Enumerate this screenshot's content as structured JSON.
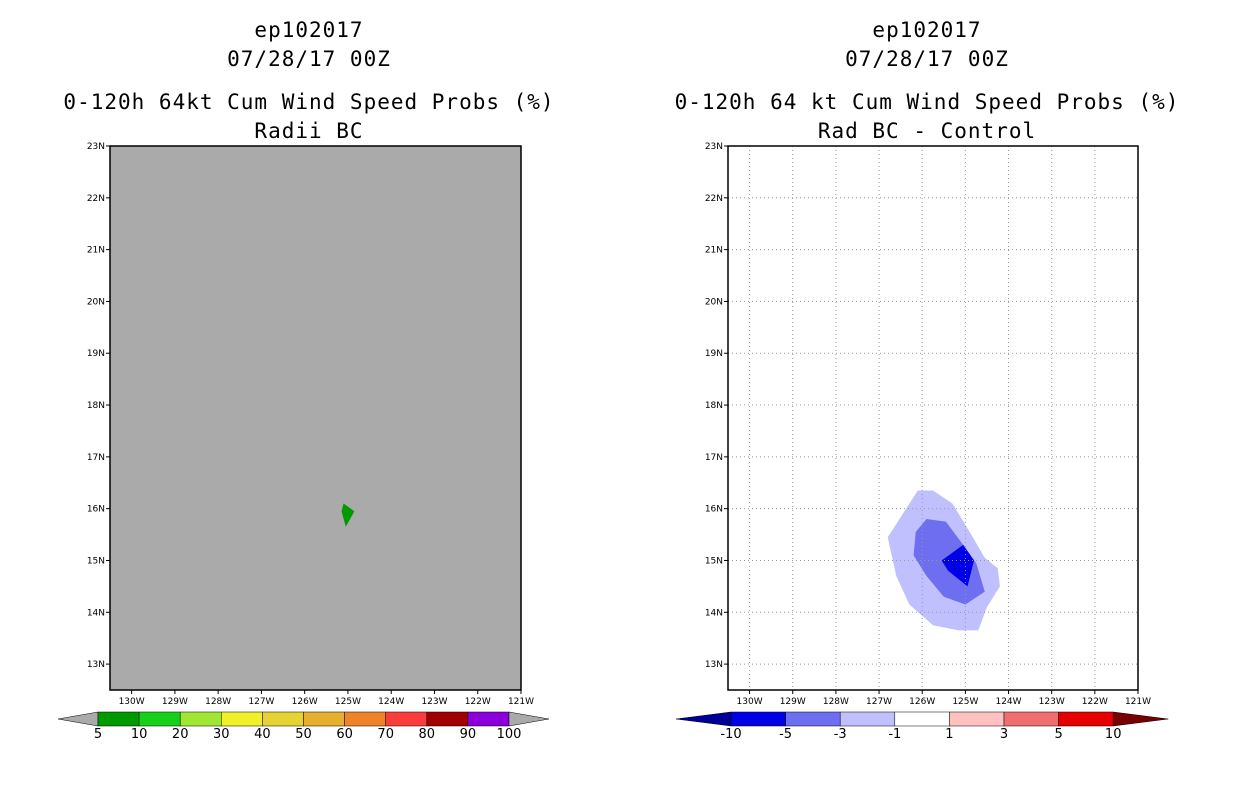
{
  "chart_data": [
    {
      "type": "contour",
      "id": "left",
      "title_lines": [
        "ep102017",
        "07/28/17 00Z",
        "0-120h 64kt Cum Wind Speed Probs (%)",
        "Radii BC"
      ],
      "xlabel": "",
      "ylabel": "",
      "x_ticks": [
        "130W",
        "129W",
        "128W",
        "127W",
        "126W",
        "125W",
        "124W",
        "123W",
        "122W",
        "121W"
      ],
      "y_ticks": [
        "23N",
        "22N",
        "21N",
        "20N",
        "19N",
        "18N",
        "17N",
        "16N",
        "15N",
        "14N",
        "13N"
      ],
      "xlim": [
        -130.5,
        -121
      ],
      "ylim": [
        12.5,
        23
      ],
      "grid": false,
      "background": "#aaaaaa",
      "regions": [
        {
          "level": "5-10",
          "color": "#009900",
          "points": [
            [
              -125.1,
              16.1
            ],
            [
              -124.85,
              15.95
            ],
            [
              -125.05,
              15.65
            ],
            [
              -125.15,
              15.95
            ]
          ]
        }
      ],
      "colorbar": {
        "labels": [
          "5",
          "10",
          "20",
          "30",
          "40",
          "50",
          "60",
          "70",
          "80",
          "90",
          "100"
        ],
        "colors": [
          "#009900",
          "#18d018",
          "#a0e632",
          "#f0f028",
          "#e6d232",
          "#e6af2d",
          "#f08228",
          "#fa3c3c",
          "#a00000",
          "#8c00dc"
        ],
        "low_arrow": "#aaaaaa",
        "high_arrow": "#aaaaaa"
      }
    },
    {
      "type": "contour",
      "id": "right",
      "title_lines": [
        "ep102017",
        "07/28/17 00Z",
        "0-120h 64 kt Cum Wind Speed Probs (%)",
        "Rad BC - Control"
      ],
      "xlabel": "",
      "ylabel": "",
      "x_ticks": [
        "130W",
        "129W",
        "128W",
        "127W",
        "126W",
        "125W",
        "124W",
        "123W",
        "122W",
        "121W"
      ],
      "y_ticks": [
        "23N",
        "22N",
        "21N",
        "20N",
        "19N",
        "18N",
        "17N",
        "16N",
        "15N",
        "14N",
        "13N"
      ],
      "xlim": [
        -130.5,
        -121
      ],
      "ylim": [
        12.5,
        23
      ],
      "grid": true,
      "background": "#ffffff",
      "regions": [
        {
          "level": "-3 to -1",
          "color": "#c0c0ff",
          "points": [
            [
              -126.1,
              16.35
            ],
            [
              -125.75,
              16.35
            ],
            [
              -125.3,
              16.1
            ],
            [
              -124.9,
              15.55
            ],
            [
              -124.55,
              15.05
            ],
            [
              -124.25,
              14.85
            ],
            [
              -124.2,
              14.5
            ],
            [
              -124.5,
              14.1
            ],
            [
              -124.7,
              13.65
            ],
            [
              -125.15,
              13.65
            ],
            [
              -125.75,
              13.75
            ],
            [
              -126.3,
              14.15
            ],
            [
              -126.6,
              14.7
            ],
            [
              -126.8,
              15.45
            ]
          ]
        },
        {
          "level": "-5 to -3",
          "color": "#6e6ef0",
          "points": [
            [
              -125.9,
              15.8
            ],
            [
              -125.45,
              15.75
            ],
            [
              -125.05,
              15.3
            ],
            [
              -124.75,
              14.95
            ],
            [
              -124.55,
              14.4
            ],
            [
              -125.0,
              14.15
            ],
            [
              -125.5,
              14.3
            ],
            [
              -125.9,
              14.7
            ],
            [
              -126.2,
              15.1
            ],
            [
              -126.15,
              15.55
            ]
          ]
        },
        {
          "level": "-10 to -5",
          "color": "#0000e6",
          "points": [
            [
              -125.05,
              15.3
            ],
            [
              -124.8,
              15.0
            ],
            [
              -124.95,
              14.5
            ],
            [
              -125.4,
              14.8
            ],
            [
              -125.55,
              15.0
            ]
          ]
        }
      ],
      "colorbar": {
        "labels": [
          "-10",
          "-5",
          "-3",
          "-1",
          "1",
          "3",
          "5",
          "10"
        ],
        "colors": [
          "#0000e6",
          "#6e6ef0",
          "#c0c0ff",
          "#ffffff",
          "#ffc0c0",
          "#f06e6e",
          "#e60000"
        ],
        "low_arrow": "#000096",
        "high_arrow": "#780000"
      }
    }
  ]
}
